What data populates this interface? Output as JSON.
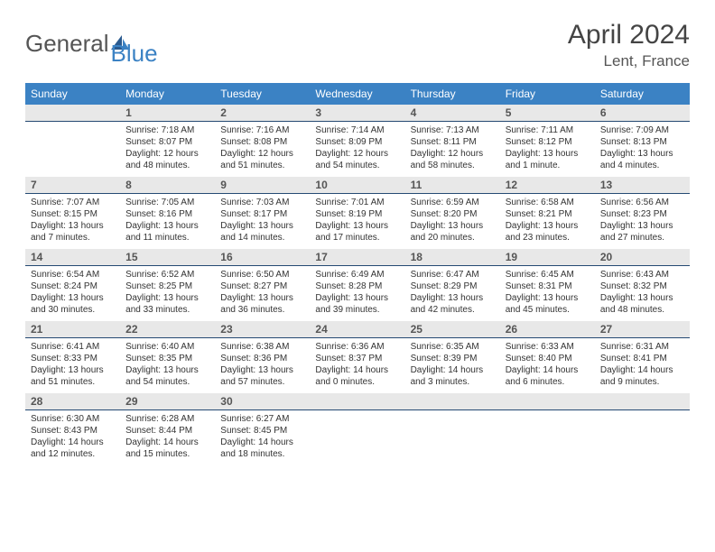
{
  "brand": {
    "part1": "General",
    "part2": "Blue"
  },
  "title": "April 2024",
  "location": "Lent, France",
  "colors": {
    "header_bg": "#3b82c4",
    "header_text": "#ffffff",
    "date_row_bg": "#e8e8e8",
    "date_row_border": "#254a73",
    "body_text": "#333333",
    "title_text": "#444444"
  },
  "day_names": [
    "Sunday",
    "Monday",
    "Tuesday",
    "Wednesday",
    "Thursday",
    "Friday",
    "Saturday"
  ],
  "weeks": [
    {
      "numbers": [
        "",
        "1",
        "2",
        "3",
        "4",
        "5",
        "6"
      ],
      "cells": [
        {
          "sunrise": "",
          "sunset": "",
          "daylight": ""
        },
        {
          "sunrise": "Sunrise: 7:18 AM",
          "sunset": "Sunset: 8:07 PM",
          "daylight": "Daylight: 12 hours and 48 minutes."
        },
        {
          "sunrise": "Sunrise: 7:16 AM",
          "sunset": "Sunset: 8:08 PM",
          "daylight": "Daylight: 12 hours and 51 minutes."
        },
        {
          "sunrise": "Sunrise: 7:14 AM",
          "sunset": "Sunset: 8:09 PM",
          "daylight": "Daylight: 12 hours and 54 minutes."
        },
        {
          "sunrise": "Sunrise: 7:13 AM",
          "sunset": "Sunset: 8:11 PM",
          "daylight": "Daylight: 12 hours and 58 minutes."
        },
        {
          "sunrise": "Sunrise: 7:11 AM",
          "sunset": "Sunset: 8:12 PM",
          "daylight": "Daylight: 13 hours and 1 minute."
        },
        {
          "sunrise": "Sunrise: 7:09 AM",
          "sunset": "Sunset: 8:13 PM",
          "daylight": "Daylight: 13 hours and 4 minutes."
        }
      ]
    },
    {
      "numbers": [
        "7",
        "8",
        "9",
        "10",
        "11",
        "12",
        "13"
      ],
      "cells": [
        {
          "sunrise": "Sunrise: 7:07 AM",
          "sunset": "Sunset: 8:15 PM",
          "daylight": "Daylight: 13 hours and 7 minutes."
        },
        {
          "sunrise": "Sunrise: 7:05 AM",
          "sunset": "Sunset: 8:16 PM",
          "daylight": "Daylight: 13 hours and 11 minutes."
        },
        {
          "sunrise": "Sunrise: 7:03 AM",
          "sunset": "Sunset: 8:17 PM",
          "daylight": "Daylight: 13 hours and 14 minutes."
        },
        {
          "sunrise": "Sunrise: 7:01 AM",
          "sunset": "Sunset: 8:19 PM",
          "daylight": "Daylight: 13 hours and 17 minutes."
        },
        {
          "sunrise": "Sunrise: 6:59 AM",
          "sunset": "Sunset: 8:20 PM",
          "daylight": "Daylight: 13 hours and 20 minutes."
        },
        {
          "sunrise": "Sunrise: 6:58 AM",
          "sunset": "Sunset: 8:21 PM",
          "daylight": "Daylight: 13 hours and 23 minutes."
        },
        {
          "sunrise": "Sunrise: 6:56 AM",
          "sunset": "Sunset: 8:23 PM",
          "daylight": "Daylight: 13 hours and 27 minutes."
        }
      ]
    },
    {
      "numbers": [
        "14",
        "15",
        "16",
        "17",
        "18",
        "19",
        "20"
      ],
      "cells": [
        {
          "sunrise": "Sunrise: 6:54 AM",
          "sunset": "Sunset: 8:24 PM",
          "daylight": "Daylight: 13 hours and 30 minutes."
        },
        {
          "sunrise": "Sunrise: 6:52 AM",
          "sunset": "Sunset: 8:25 PM",
          "daylight": "Daylight: 13 hours and 33 minutes."
        },
        {
          "sunrise": "Sunrise: 6:50 AM",
          "sunset": "Sunset: 8:27 PM",
          "daylight": "Daylight: 13 hours and 36 minutes."
        },
        {
          "sunrise": "Sunrise: 6:49 AM",
          "sunset": "Sunset: 8:28 PM",
          "daylight": "Daylight: 13 hours and 39 minutes."
        },
        {
          "sunrise": "Sunrise: 6:47 AM",
          "sunset": "Sunset: 8:29 PM",
          "daylight": "Daylight: 13 hours and 42 minutes."
        },
        {
          "sunrise": "Sunrise: 6:45 AM",
          "sunset": "Sunset: 8:31 PM",
          "daylight": "Daylight: 13 hours and 45 minutes."
        },
        {
          "sunrise": "Sunrise: 6:43 AM",
          "sunset": "Sunset: 8:32 PM",
          "daylight": "Daylight: 13 hours and 48 minutes."
        }
      ]
    },
    {
      "numbers": [
        "21",
        "22",
        "23",
        "24",
        "25",
        "26",
        "27"
      ],
      "cells": [
        {
          "sunrise": "Sunrise: 6:41 AM",
          "sunset": "Sunset: 8:33 PM",
          "daylight": "Daylight: 13 hours and 51 minutes."
        },
        {
          "sunrise": "Sunrise: 6:40 AM",
          "sunset": "Sunset: 8:35 PM",
          "daylight": "Daylight: 13 hours and 54 minutes."
        },
        {
          "sunrise": "Sunrise: 6:38 AM",
          "sunset": "Sunset: 8:36 PM",
          "daylight": "Daylight: 13 hours and 57 minutes."
        },
        {
          "sunrise": "Sunrise: 6:36 AM",
          "sunset": "Sunset: 8:37 PM",
          "daylight": "Daylight: 14 hours and 0 minutes."
        },
        {
          "sunrise": "Sunrise: 6:35 AM",
          "sunset": "Sunset: 8:39 PM",
          "daylight": "Daylight: 14 hours and 3 minutes."
        },
        {
          "sunrise": "Sunrise: 6:33 AM",
          "sunset": "Sunset: 8:40 PM",
          "daylight": "Daylight: 14 hours and 6 minutes."
        },
        {
          "sunrise": "Sunrise: 6:31 AM",
          "sunset": "Sunset: 8:41 PM",
          "daylight": "Daylight: 14 hours and 9 minutes."
        }
      ]
    },
    {
      "numbers": [
        "28",
        "29",
        "30",
        "",
        "",
        "",
        ""
      ],
      "cells": [
        {
          "sunrise": "Sunrise: 6:30 AM",
          "sunset": "Sunset: 8:43 PM",
          "daylight": "Daylight: 14 hours and 12 minutes."
        },
        {
          "sunrise": "Sunrise: 6:28 AM",
          "sunset": "Sunset: 8:44 PM",
          "daylight": "Daylight: 14 hours and 15 minutes."
        },
        {
          "sunrise": "Sunrise: 6:27 AM",
          "sunset": "Sunset: 8:45 PM",
          "daylight": "Daylight: 14 hours and 18 minutes."
        },
        {
          "sunrise": "",
          "sunset": "",
          "daylight": ""
        },
        {
          "sunrise": "",
          "sunset": "",
          "daylight": ""
        },
        {
          "sunrise": "",
          "sunset": "",
          "daylight": ""
        },
        {
          "sunrise": "",
          "sunset": "",
          "daylight": ""
        }
      ]
    }
  ]
}
